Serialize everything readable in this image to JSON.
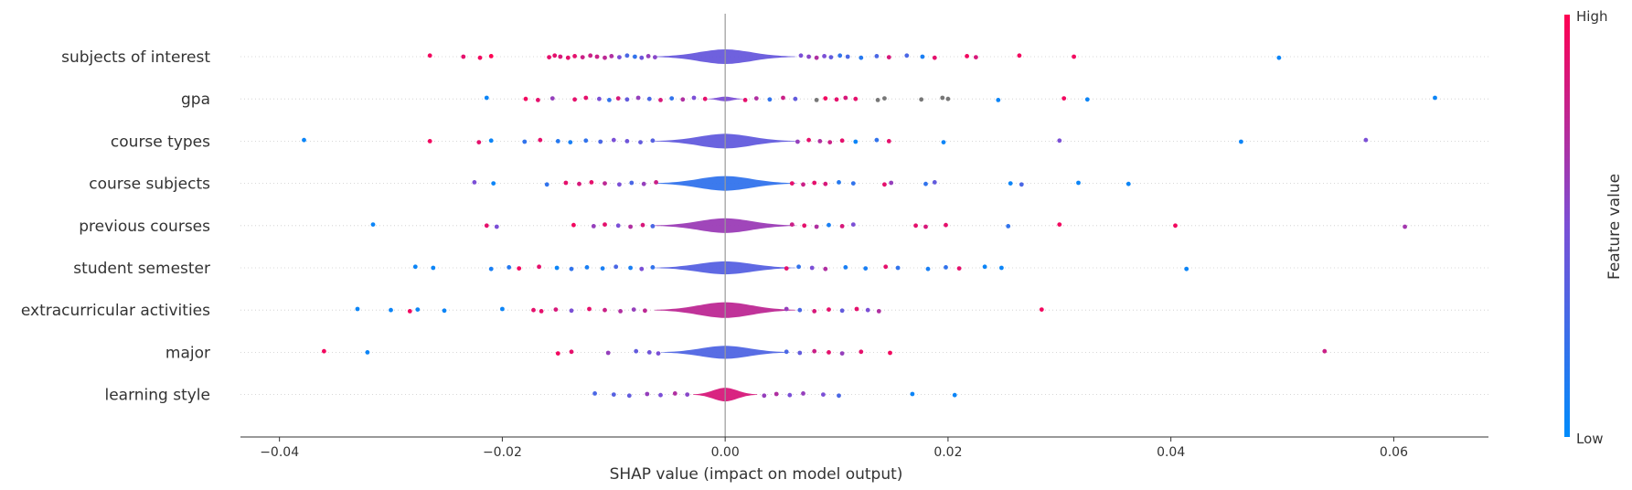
{
  "chart_data": {
    "type": "scatter",
    "subtype": "shap-layered-violin-summary",
    "xlabel": "SHAP value (impact on model output)",
    "xlim": [
      -0.0435,
      0.0685
    ],
    "xticks": [
      -0.04,
      -0.02,
      0.0,
      0.02,
      0.04,
      0.06
    ],
    "xtick_labels": [
      "−0.04",
      "−0.02",
      "0.00",
      "0.02",
      "0.04",
      "0.06"
    ],
    "grid": false,
    "colorbar": {
      "label": "Feature value",
      "high_label": "High",
      "low_label": "Low",
      "colors": [
        "#008bfb",
        "#ff0052"
      ]
    },
    "features": [
      {
        "name": "subjects of interest",
        "body": {
          "center": 0.0,
          "halfwidth": 0.0055,
          "thickness": 0.7,
          "color": 0.42
        },
        "points": [
          [
            -0.0265,
            0.95
          ],
          [
            -0.0235,
            0.9
          ],
          [
            -0.022,
            0.95
          ],
          [
            -0.021,
            1.0
          ],
          [
            -0.0158,
            0.9
          ],
          [
            -0.0153,
            0.9
          ],
          [
            -0.0148,
            0.85
          ],
          [
            -0.0141,
            0.9
          ],
          [
            -0.0135,
            0.9
          ],
          [
            -0.0128,
            0.8
          ],
          [
            -0.0121,
            0.8
          ],
          [
            -0.0115,
            0.8
          ],
          [
            -0.0108,
            0.75
          ],
          [
            -0.0102,
            0.7
          ],
          [
            -0.0095,
            0.5
          ],
          [
            -0.0088,
            0.3
          ],
          [
            -0.0081,
            0.2
          ],
          [
            -0.0075,
            0.45
          ],
          [
            -0.0069,
            0.6
          ],
          [
            -0.0063,
            0.55
          ],
          [
            0.0068,
            0.5
          ],
          [
            0.0075,
            0.55
          ],
          [
            0.0082,
            0.7
          ],
          [
            0.0089,
            0.5
          ],
          [
            0.0095,
            0.4
          ],
          [
            0.0103,
            0.2
          ],
          [
            0.011,
            0.3
          ],
          [
            0.0122,
            0.15
          ],
          [
            0.0136,
            0.3
          ],
          [
            0.0147,
            0.85
          ],
          [
            0.0163,
            0.3
          ],
          [
            0.0177,
            0.1
          ],
          [
            0.0188,
            0.9
          ],
          [
            0.0217,
            0.95
          ],
          [
            0.0225,
            0.85
          ],
          [
            0.0264,
            0.95
          ],
          [
            0.0313,
            0.95
          ],
          [
            0.0497,
            0.05
          ]
        ]
      },
      {
        "name": "gpa",
        "body": {
          "center": 0.0,
          "halfwidth": 0.0015,
          "thickness": 0.22,
          "color": 0.5
        },
        "points": [
          [
            -0.0214,
            0.05
          ],
          [
            -0.0179,
            0.95
          ],
          [
            -0.0168,
            0.9
          ],
          [
            -0.0155,
            0.6
          ],
          [
            -0.0135,
            0.9
          ],
          [
            -0.0125,
            0.9
          ],
          [
            -0.0113,
            0.5
          ],
          [
            -0.0104,
            0.2
          ],
          [
            -0.0096,
            0.85
          ],
          [
            -0.0088,
            0.4
          ],
          [
            -0.0078,
            0.6
          ],
          [
            -0.0068,
            0.3
          ],
          [
            -0.0058,
            0.85
          ],
          [
            -0.0048,
            0.2
          ],
          [
            -0.0038,
            0.7
          ],
          [
            -0.0028,
            0.5
          ],
          [
            -0.0018,
            0.9
          ],
          [
            0.0018,
            0.9
          ],
          [
            0.0028,
            0.7
          ],
          [
            0.004,
            0.2
          ],
          [
            0.0052,
            0.8
          ],
          [
            0.0063,
            0.4
          ],
          [
            0.0082,
            "nan"
          ],
          [
            0.009,
            0.95
          ],
          [
            0.01,
            0.9
          ],
          [
            0.0108,
            0.85
          ],
          [
            0.0117,
            0.9
          ],
          [
            0.0137,
            "nan"
          ],
          [
            0.0143,
            "nan"
          ],
          [
            0.0176,
            "nan"
          ],
          [
            0.0195,
            "nan"
          ],
          [
            0.02,
            "nan"
          ],
          [
            0.0245,
            0.05
          ],
          [
            0.0304,
            0.95
          ],
          [
            0.0325,
            0.05
          ],
          [
            0.0637,
            0.05
          ]
        ]
      },
      {
        "name": "course types",
        "body": {
          "center": 0.0,
          "halfwidth": 0.0055,
          "thickness": 0.7,
          "color": 0.4
        },
        "points": [
          [
            -0.0378,
            0.05
          ],
          [
            -0.0265,
            0.95
          ],
          [
            -0.0221,
            0.9
          ],
          [
            -0.021,
            0.05
          ],
          [
            -0.018,
            0.2
          ],
          [
            -0.0166,
            0.9
          ],
          [
            -0.015,
            0.15
          ],
          [
            -0.0139,
            0.1
          ],
          [
            -0.0125,
            0.2
          ],
          [
            -0.0112,
            0.3
          ],
          [
            -0.01,
            0.5
          ],
          [
            -0.0088,
            0.45
          ],
          [
            -0.0076,
            0.4
          ],
          [
            -0.0065,
            0.35
          ],
          [
            0.0065,
            0.6
          ],
          [
            0.0075,
            0.9
          ],
          [
            0.0085,
            0.7
          ],
          [
            0.0094,
            0.8
          ],
          [
            0.0105,
            0.9
          ],
          [
            0.0117,
            0.05
          ],
          [
            0.0136,
            0.2
          ],
          [
            0.0147,
            0.9
          ],
          [
            0.0196,
            0.05
          ],
          [
            0.03,
            0.5
          ],
          [
            0.0463,
            0.05
          ],
          [
            0.0575,
            0.5
          ]
        ]
      },
      {
        "name": "course subjects",
        "body": {
          "center": 0.0,
          "halfwidth": 0.0055,
          "thickness": 0.7,
          "color": 0.2
        },
        "points": [
          [
            -0.0225,
            0.5
          ],
          [
            -0.0208,
            0.05
          ],
          [
            -0.016,
            0.2
          ],
          [
            -0.0143,
            0.9
          ],
          [
            -0.0131,
            0.85
          ],
          [
            -0.012,
            0.9
          ],
          [
            -0.0108,
            0.75
          ],
          [
            -0.0095,
            0.5
          ],
          [
            -0.0084,
            0.3
          ],
          [
            -0.0073,
            0.6
          ],
          [
            -0.0062,
            0.8
          ],
          [
            0.006,
            0.9
          ],
          [
            0.007,
            0.8
          ],
          [
            0.008,
            0.9
          ],
          [
            0.009,
            0.85
          ],
          [
            0.0102,
            0.15
          ],
          [
            0.0115,
            0.2
          ],
          [
            0.0143,
            0.9
          ],
          [
            0.0149,
            0.6
          ],
          [
            0.018,
            0.2
          ],
          [
            0.0188,
            0.4
          ],
          [
            0.0256,
            0.05
          ],
          [
            0.0266,
            0.3
          ],
          [
            0.0317,
            0.05
          ],
          [
            0.0362,
            0.05
          ]
        ]
      },
      {
        "name": "previous courses",
        "body": {
          "center": 0.0,
          "halfwidth": 0.0055,
          "thickness": 0.7,
          "color": 0.62
        },
        "points": [
          [
            -0.0316,
            0.05
          ],
          [
            -0.0214,
            0.9
          ],
          [
            -0.0205,
            0.5
          ],
          [
            -0.0136,
            0.95
          ],
          [
            -0.0118,
            0.6
          ],
          [
            -0.0108,
            0.9
          ],
          [
            -0.0096,
            0.5
          ],
          [
            -0.0085,
            0.7
          ],
          [
            -0.0074,
            0.85
          ],
          [
            -0.0065,
            0.3
          ],
          [
            0.006,
            0.8
          ],
          [
            0.0071,
            0.9
          ],
          [
            0.0082,
            0.7
          ],
          [
            0.0093,
            0.1
          ],
          [
            0.0105,
            0.85
          ],
          [
            0.0115,
            0.5
          ],
          [
            0.0171,
            0.9
          ],
          [
            0.018,
            0.85
          ],
          [
            0.0198,
            0.9
          ],
          [
            0.0254,
            0.2
          ],
          [
            0.03,
            0.95
          ],
          [
            0.0404,
            0.95
          ],
          [
            0.061,
            0.65
          ]
        ]
      },
      {
        "name": "student semester",
        "body": {
          "center": 0.0,
          "halfwidth": 0.0055,
          "thickness": 0.62,
          "color": 0.35
        },
        "points": [
          [
            -0.0278,
            0.05
          ],
          [
            -0.0262,
            0.05
          ],
          [
            -0.021,
            0.1
          ],
          [
            -0.0194,
            0.15
          ],
          [
            -0.0185,
            0.95
          ],
          [
            -0.0167,
            0.9
          ],
          [
            -0.0151,
            0.05
          ],
          [
            -0.0138,
            0.2
          ],
          [
            -0.0124,
            0.1
          ],
          [
            -0.011,
            0.1
          ],
          [
            -0.0098,
            0.3
          ],
          [
            -0.0085,
            0.1
          ],
          [
            -0.0075,
            0.5
          ],
          [
            -0.0065,
            0.2
          ],
          [
            0.0055,
            0.9
          ],
          [
            0.0066,
            0.2
          ],
          [
            0.0078,
            0.5
          ],
          [
            0.009,
            0.7
          ],
          [
            0.0108,
            0.1
          ],
          [
            0.0126,
            0.1
          ],
          [
            0.0144,
            0.9
          ],
          [
            0.0155,
            0.2
          ],
          [
            0.0182,
            0.1
          ],
          [
            0.0198,
            0.2
          ],
          [
            0.021,
            0.9
          ],
          [
            0.0233,
            0.05
          ],
          [
            0.0248,
            0.05
          ],
          [
            0.0414,
            0.05
          ]
        ]
      },
      {
        "name": "extracurricular activities",
        "body": {
          "center": 0.0,
          "halfwidth": 0.0055,
          "thickness": 0.75,
          "color": 0.75
        },
        "points": [
          [
            -0.033,
            0.05
          ],
          [
            -0.03,
            0.05
          ],
          [
            -0.0283,
            0.95
          ],
          [
            -0.0276,
            0.05
          ],
          [
            -0.0252,
            0.05
          ],
          [
            -0.02,
            0.05
          ],
          [
            -0.0172,
            0.9
          ],
          [
            -0.0165,
            0.9
          ],
          [
            -0.0152,
            0.85
          ],
          [
            -0.0138,
            0.5
          ],
          [
            -0.0122,
            0.9
          ],
          [
            -0.0108,
            0.8
          ],
          [
            -0.0094,
            0.7
          ],
          [
            -0.0082,
            0.6
          ],
          [
            -0.0072,
            0.75
          ],
          [
            0.0055,
            0.6
          ],
          [
            0.0067,
            0.3
          ],
          [
            0.008,
            0.85
          ],
          [
            0.0093,
            0.9
          ],
          [
            0.0105,
            0.4
          ],
          [
            0.0118,
            0.9
          ],
          [
            0.0128,
            0.5
          ],
          [
            0.0138,
            0.7
          ],
          [
            0.0284,
            0.95
          ]
        ]
      },
      {
        "name": "major",
        "body": {
          "center": 0.0,
          "halfwidth": 0.005,
          "thickness": 0.62,
          "color": 0.32
        },
        "points": [
          [
            -0.036,
            0.95
          ],
          [
            -0.0321,
            0.05
          ],
          [
            -0.015,
            0.95
          ],
          [
            -0.0138,
            0.9
          ],
          [
            -0.0105,
            0.6
          ],
          [
            -0.008,
            0.4
          ],
          [
            -0.0068,
            0.45
          ],
          [
            -0.006,
            0.5
          ],
          [
            0.0055,
            0.3
          ],
          [
            0.0067,
            0.4
          ],
          [
            0.008,
            0.8
          ],
          [
            0.0093,
            0.9
          ],
          [
            0.0105,
            0.6
          ],
          [
            0.0122,
            0.9
          ],
          [
            0.0148,
            0.95
          ],
          [
            0.0538,
            0.8
          ]
        ]
      },
      {
        "name": "learning style",
        "body": {
          "center": 0.0,
          "halfwidth": 0.0025,
          "thickness": 0.65,
          "color": 0.85
        },
        "points": [
          [
            -0.0117,
            0.3
          ],
          [
            -0.01,
            0.35
          ],
          [
            -0.0086,
            0.4
          ],
          [
            -0.007,
            0.6
          ],
          [
            -0.0058,
            0.5
          ],
          [
            -0.0045,
            0.7
          ],
          [
            -0.0034,
            0.55
          ],
          [
            0.0035,
            0.6
          ],
          [
            0.0046,
            0.7
          ],
          [
            0.0058,
            0.5
          ],
          [
            0.007,
            0.6
          ],
          [
            0.0088,
            0.5
          ],
          [
            0.0102,
            0.3
          ],
          [
            0.0168,
            0.05
          ],
          [
            0.0206,
            0.05
          ]
        ]
      }
    ]
  }
}
